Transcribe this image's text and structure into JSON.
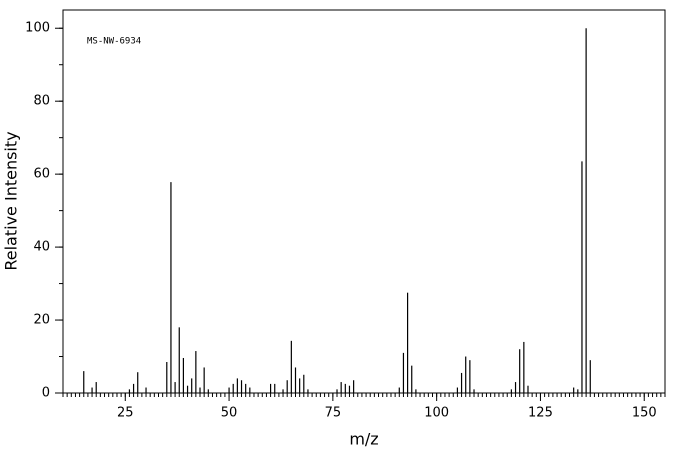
{
  "chart_data": {
    "type": "stem",
    "annotation": "MS-NW-6934",
    "x_label": "m/z",
    "y_label": "Relative Intensity",
    "x": [
      15,
      17,
      18,
      26,
      27,
      28,
      30,
      35,
      36,
      37,
      38,
      39,
      40,
      41,
      42,
      43,
      44,
      45,
      50,
      51,
      52,
      53,
      54,
      55,
      60,
      61,
      63,
      64,
      65,
      66,
      67,
      68,
      69,
      76,
      77,
      78,
      79,
      80,
      91,
      92,
      93,
      94,
      95,
      105,
      106,
      107,
      108,
      109,
      118,
      119,
      120,
      121,
      122,
      133,
      134,
      135,
      136,
      137
    ],
    "values": [
      6,
      1.5,
      3,
      1,
      2.5,
      5.7,
      1.5,
      8.5,
      57.8,
      3,
      18,
      9.6,
      2,
      4,
      11.5,
      1.5,
      7,
      1,
      1.5,
      2.5,
      4,
      3.5,
      2.5,
      1.5,
      2.5,
      2.5,
      1,
      3.5,
      14.3,
      7,
      4,
      5,
      1,
      1,
      3,
      2.5,
      2,
      3.5,
      1.5,
      11,
      27.5,
      7.5,
      1,
      1.5,
      5.5,
      10,
      9,
      1,
      1,
      3,
      12,
      14,
      2,
      1.5,
      1,
      63.5,
      100,
      9
    ],
    "color": "#000000",
    "xlim": [
      10,
      155
    ],
    "xticks": [
      25,
      50,
      75,
      100,
      125,
      150
    ],
    "ylim": [
      0,
      105
    ],
    "yticks": [
      0,
      20,
      40,
      60,
      80,
      100
    ]
  }
}
